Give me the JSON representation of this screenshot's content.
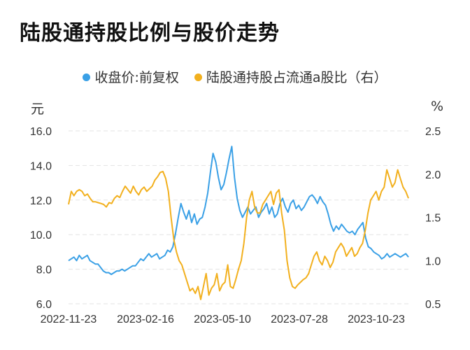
{
  "title": "陆股通持股比例与股价走势",
  "legend": [
    {
      "label": "收盘价:前复权",
      "color": "#3aa0e6"
    },
    {
      "label": "陆股通持股占流通a股比（右）",
      "color": "#f2b01e"
    }
  ],
  "left_unit": "元",
  "right_unit": "%",
  "chart_data": {
    "type": "line",
    "title": "陆股通持股比例与股价走势",
    "xlabel": "",
    "x_ticks": [
      "2022-11-23",
      "2023-02-16",
      "2023-05-10",
      "2023-07-28",
      "2023-10-23"
    ],
    "y_left": {
      "label": "元",
      "lim": [
        6.0,
        16.0
      ],
      "ticks": [
        "6.0",
        "8.0",
        "10.0",
        "12.0",
        "14.0",
        "16.0"
      ]
    },
    "y_right": {
      "label": "%",
      "lim": [
        0.5,
        2.5
      ],
      "ticks": [
        "0.5",
        "1.0",
        "1.5",
        "2.0",
        "2.5"
      ]
    },
    "grid": "horizontal dashed",
    "legend_position": "top",
    "series": [
      {
        "name": "收盘价:前复权",
        "axis": "left",
        "color": "#3aa0e6",
        "values": [
          8.5,
          8.6,
          8.7,
          8.5,
          8.8,
          8.6,
          8.7,
          8.8,
          8.5,
          8.4,
          8.3,
          8.3,
          8.1,
          7.9,
          7.8,
          7.8,
          7.7,
          7.8,
          7.9,
          7.9,
          8.0,
          7.9,
          8.0,
          8.1,
          8.2,
          8.2,
          8.4,
          8.6,
          8.5,
          8.7,
          8.9,
          8.7,
          8.8,
          8.9,
          8.6,
          8.7,
          8.8,
          9.1,
          9.0,
          9.3,
          10.1,
          11.0,
          11.8,
          11.3,
          10.9,
          11.4,
          10.7,
          11.2,
          10.6,
          10.9,
          11.0,
          11.6,
          12.4,
          13.6,
          14.7,
          14.2,
          13.3,
          12.6,
          12.9,
          13.6,
          14.4,
          15.1,
          13.3,
          12.1,
          11.4,
          11.0,
          11.3,
          11.6,
          11.2,
          11.4,
          11.6,
          11.0,
          11.3,
          11.5,
          11.8,
          11.2,
          11.6,
          11.0,
          11.2,
          11.8,
          12.1,
          11.6,
          11.3,
          11.8,
          12.0,
          11.5,
          11.7,
          11.4,
          11.6,
          11.9,
          12.2,
          12.3,
          12.1,
          11.8,
          12.2,
          11.9,
          11.7,
          11.2,
          10.6,
          10.2,
          10.5,
          10.3,
          10.6,
          10.4,
          10.2,
          10.1,
          10.2,
          10.0,
          10.3,
          10.5,
          10.7,
          9.8,
          9.3,
          9.2,
          9.0,
          8.9,
          8.8,
          8.6,
          8.7,
          8.9,
          8.7,
          8.8,
          8.9,
          8.8,
          8.7,
          8.8,
          8.9,
          8.7
        ]
      },
      {
        "name": "陆股通持股占流通a股比（右）",
        "axis": "right",
        "color": "#f2b01e",
        "values": [
          1.65,
          1.8,
          1.75,
          1.8,
          1.82,
          1.8,
          1.75,
          1.77,
          1.72,
          1.68,
          1.68,
          1.67,
          1.66,
          1.65,
          1.62,
          1.67,
          1.66,
          1.72,
          1.75,
          1.73,
          1.8,
          1.86,
          1.82,
          1.78,
          1.86,
          1.8,
          1.76,
          1.82,
          1.85,
          1.8,
          1.83,
          1.86,
          1.93,
          1.97,
          2.02,
          2.03,
          1.95,
          1.8,
          1.5,
          1.25,
          1.1,
          1.0,
          0.95,
          0.85,
          0.75,
          0.65,
          0.68,
          0.62,
          0.7,
          0.55,
          0.7,
          0.85,
          0.6,
          0.68,
          0.72,
          0.85,
          0.65,
          0.72,
          0.75,
          0.95,
          0.7,
          0.68,
          0.78,
          0.9,
          1.0,
          1.2,
          1.5,
          1.7,
          1.8,
          1.62,
          1.55,
          1.55,
          1.65,
          1.7,
          1.75,
          1.8,
          1.65,
          1.78,
          1.82,
          1.55,
          1.35,
          1.0,
          0.8,
          0.7,
          0.68,
          0.72,
          0.75,
          0.78,
          0.8,
          0.85,
          0.95,
          1.05,
          1.1,
          1.0,
          0.95,
          1.05,
          1.0,
          0.92,
          0.98,
          1.1,
          1.15,
          1.2,
          1.15,
          1.05,
          1.1,
          1.15,
          1.05,
          1.08,
          1.15,
          1.2,
          1.35,
          1.55,
          1.7,
          1.75,
          1.8,
          1.7,
          1.8,
          1.85,
          2.05,
          1.95,
          1.85,
          1.9,
          2.05,
          1.95,
          1.85,
          1.8,
          1.72
        ]
      }
    ]
  }
}
